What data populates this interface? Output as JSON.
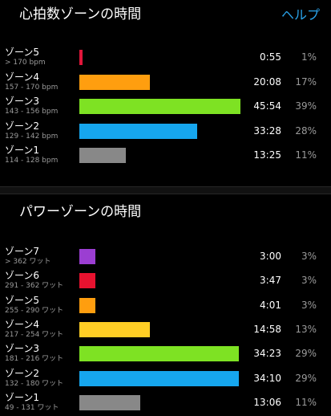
{
  "heart_rate": {
    "title": "心拍数ゾーンの時間",
    "help_label": "ヘルプ",
    "zones": [
      {
        "name": "ゾーン5",
        "range": "> 170 bpm",
        "time": "0:55",
        "percent": "1%",
        "fraction": 0.02,
        "color": "#e0163a"
      },
      {
        "name": "ゾーン4",
        "range": "157 - 170 bpm",
        "time": "20:08",
        "percent": "17%",
        "fraction": 0.44,
        "color": "#ff9e0f"
      },
      {
        "name": "ゾーン3",
        "range": "143 - 156 bpm",
        "time": "45:54",
        "percent": "39%",
        "fraction": 1.0,
        "color": "#7ee223"
      },
      {
        "name": "ゾーン2",
        "range": "129 - 142 bpm",
        "time": "33:28",
        "percent": "28%",
        "fraction": 0.73,
        "color": "#16a6ee"
      },
      {
        "name": "ゾーン1",
        "range": "114 - 128 bpm",
        "time": "13:25",
        "percent": "11%",
        "fraction": 0.29,
        "color": "#888888"
      }
    ]
  },
  "power": {
    "title": "パワーゾーンの時間",
    "zones": [
      {
        "name": "ゾーン7",
        "range": "> 362 ワット",
        "time": "3:00",
        "percent": "3%",
        "fraction": 0.1,
        "color": "#9b3ed2"
      },
      {
        "name": "ゾーン6",
        "range": "291 - 362 ワット",
        "time": "3:47",
        "percent": "3%",
        "fraction": 0.1,
        "color": "#e8122f"
      },
      {
        "name": "ゾーン5",
        "range": "255 - 290 ワット",
        "time": "4:01",
        "percent": "3%",
        "fraction": 0.1,
        "color": "#ff9e0f"
      },
      {
        "name": "ゾーン4",
        "range": "217 - 254 ワット",
        "time": "14:58",
        "percent": "13%",
        "fraction": 0.44,
        "color": "#ffce25"
      },
      {
        "name": "ゾーン3",
        "range": "181 - 216 ワット",
        "time": "34:23",
        "percent": "29%",
        "fraction": 0.99,
        "color": "#7ee223"
      },
      {
        "name": "ゾーン2",
        "range": "132 - 180 ワット",
        "time": "34:10",
        "percent": "29%",
        "fraction": 0.99,
        "color": "#16a6ee"
      },
      {
        "name": "ゾーン1",
        "range": "49 - 131 ワット",
        "time": "13:06",
        "percent": "11%",
        "fraction": 0.38,
        "color": "#888888"
      }
    ]
  }
}
